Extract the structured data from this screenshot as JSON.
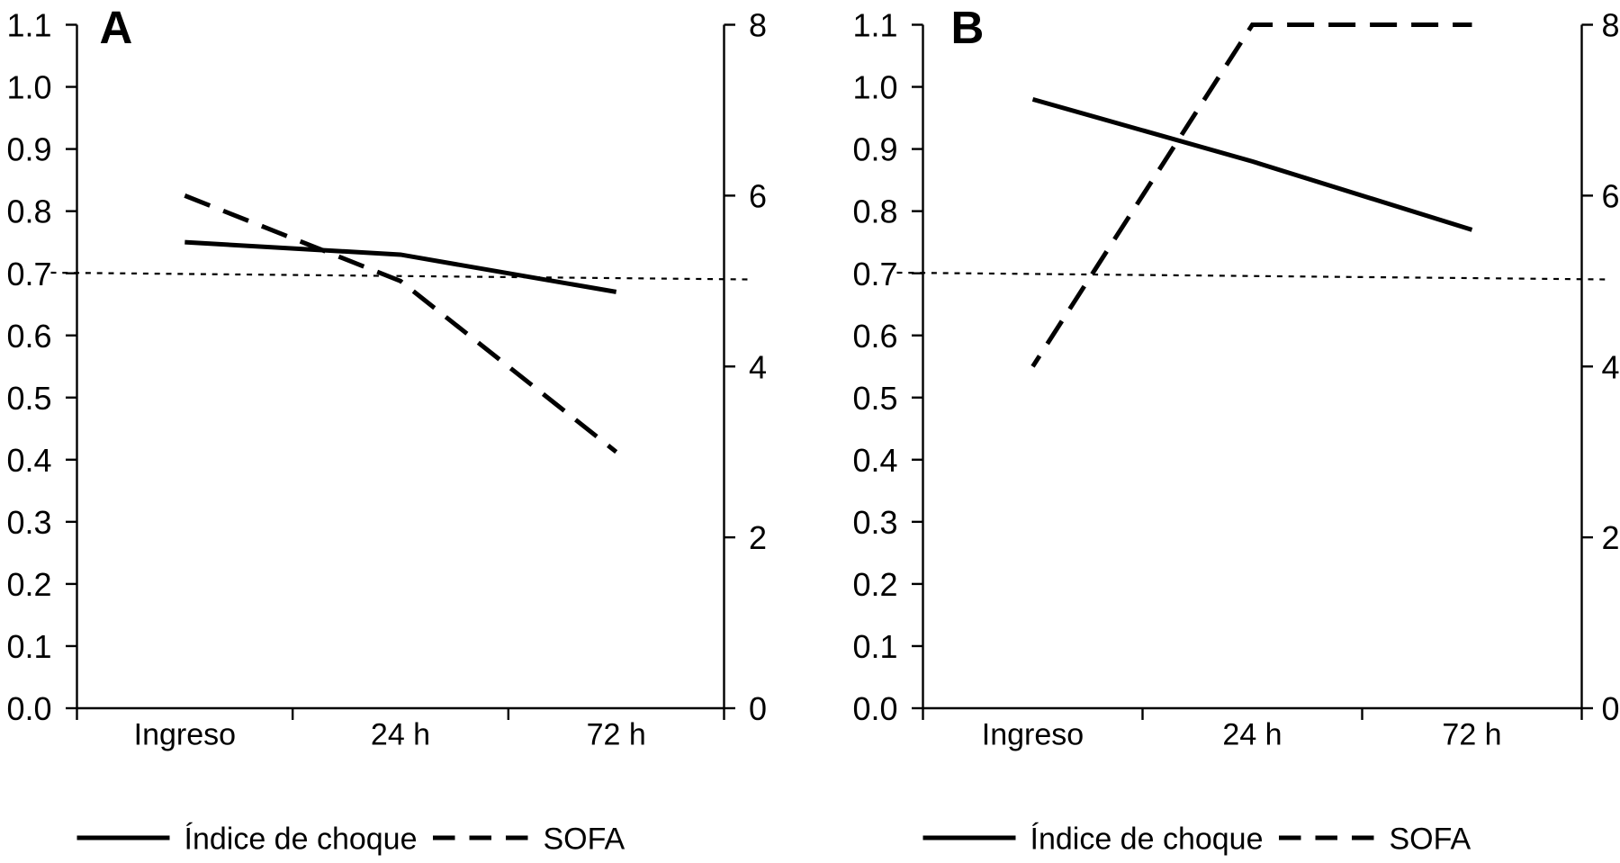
{
  "page": {
    "background": "#ffffff",
    "ink": "#000000"
  },
  "chart_data": [
    {
      "type": "line",
      "panel_label": "A",
      "categories": [
        "Ingreso",
        "24 h",
        "72 h"
      ],
      "left_axis": {
        "min": 0.0,
        "max": 1.1,
        "tick_labels": [
          "0.0",
          "0.1",
          "0.2",
          "0.3",
          "0.4",
          "0.5",
          "0.6",
          "0.7",
          "0.8",
          "0.9",
          "1.0",
          "1.1"
        ]
      },
      "right_axis": {
        "min": 0,
        "max": 8,
        "tick_labels": [
          "0",
          "2",
          "4",
          "6",
          "8"
        ]
      },
      "reference_line": {
        "axis": "left",
        "value": 0.7,
        "style": "dotted"
      },
      "series": [
        {
          "name": "Índice de choque",
          "axis": "left",
          "line_style": "solid",
          "values": [
            0.75,
            0.73,
            0.67
          ]
        },
        {
          "name": "SOFA",
          "axis": "right",
          "line_style": "dashed",
          "values": [
            6,
            5,
            3
          ]
        }
      ],
      "legend": [
        {
          "label": "Índice de choque",
          "swatch": "solid"
        },
        {
          "label": "SOFA",
          "swatch": "dashed"
        }
      ],
      "legend_position": "bottom",
      "grid": false
    },
    {
      "type": "line",
      "panel_label": "B",
      "categories": [
        "Ingreso",
        "24 h",
        "72 h"
      ],
      "left_axis": {
        "min": 0.0,
        "max": 1.1,
        "tick_labels": [
          "0.0",
          "0.1",
          "0.2",
          "0.3",
          "0.4",
          "0.5",
          "0.6",
          "0.7",
          "0.8",
          "0.9",
          "1.0",
          "1.1"
        ]
      },
      "right_axis": {
        "min": 0,
        "max": 8,
        "tick_labels": [
          "0",
          "2",
          "4",
          "6",
          "8"
        ]
      },
      "reference_line": {
        "axis": "left",
        "value": 0.7,
        "style": "dotted"
      },
      "series": [
        {
          "name": "Índice de choque",
          "axis": "left",
          "line_style": "solid",
          "values": [
            0.98,
            0.88,
            0.77
          ]
        },
        {
          "name": "SOFA",
          "axis": "right",
          "line_style": "dashed",
          "values": [
            4,
            8,
            8
          ]
        }
      ],
      "legend": [
        {
          "label": "Índice de choque",
          "swatch": "solid"
        },
        {
          "label": "SOFA",
          "swatch": "dashed"
        }
      ],
      "legend_position": "bottom",
      "grid": false
    }
  ]
}
